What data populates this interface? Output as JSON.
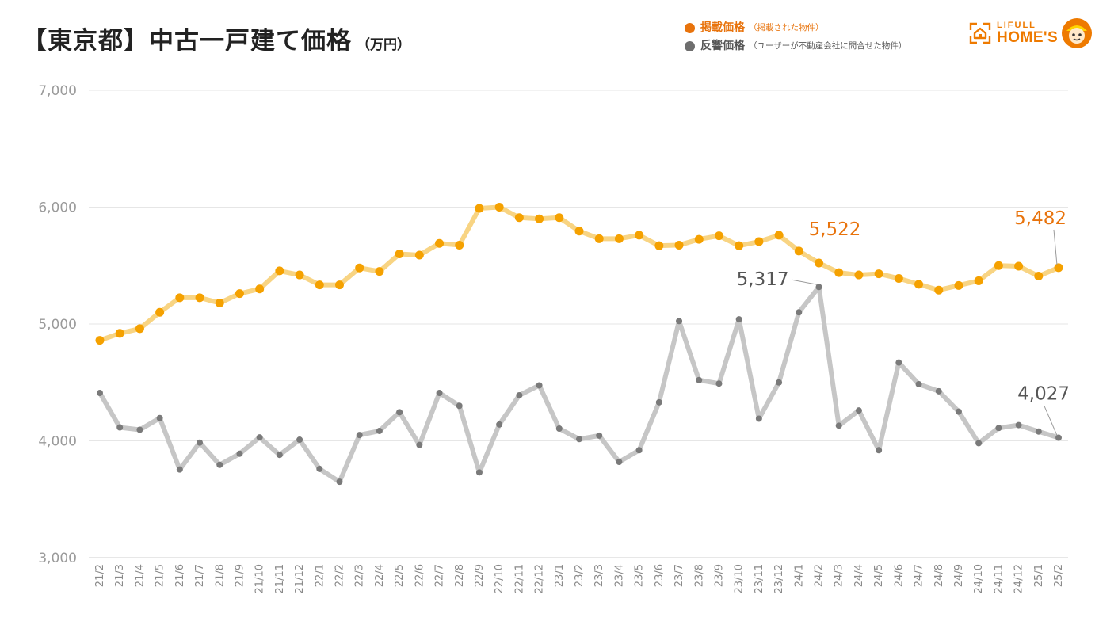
{
  "title": "【東京都】中古一戸建て価格",
  "unit": "（万円）",
  "legend": [
    {
      "name": "掲載価格",
      "note": "（掲載された物件）",
      "color": "#e8730c"
    },
    {
      "name": "反響価格",
      "note": "（ユーザーが不動産会社に問合せた物件）",
      "color": "#6e6e6e"
    }
  ],
  "logo": {
    "line1": "LIFULL",
    "line2": "HOME'S"
  },
  "chart_data": {
    "type": "line",
    "title": "【東京都】中古一戸建て価格",
    "ylabel": "（万円）",
    "ylim": [
      3000,
      7000
    ],
    "yticks": [
      "3,000",
      "4,000",
      "5,000",
      "6,000",
      "7,000"
    ],
    "ytick_values": [
      3000,
      4000,
      5000,
      6000,
      7000
    ],
    "grid": true,
    "categories": [
      "21/2",
      "21/3",
      "21/4",
      "21/5",
      "21/6",
      "21/7",
      "21/8",
      "21/9",
      "21/10",
      "21/11",
      "21/12",
      "22/1",
      "22/2",
      "22/3",
      "22/4",
      "22/5",
      "22/6",
      "22/7",
      "22/8",
      "22/9",
      "22/10",
      "22/11",
      "22/12",
      "23/1",
      "23/2",
      "23/3",
      "23/4",
      "23/5",
      "23/6",
      "23/7",
      "23/8",
      "23/9",
      "23/10",
      "23/11",
      "23/12",
      "24/1",
      "24/2",
      "24/3",
      "24/4",
      "24/5",
      "24/6",
      "24/7",
      "24/8",
      "24/9",
      "24/10",
      "24/11",
      "24/12",
      "25/1",
      "25/2"
    ],
    "series": [
      {
        "name": "掲載価格",
        "color": "#f5a100",
        "line_color": "#f8d483",
        "values": [
          4860,
          4920,
          4960,
          5100,
          5225,
          5225,
          5180,
          5260,
          5300,
          5455,
          5420,
          5335,
          5335,
          5480,
          5450,
          5600,
          5590,
          5690,
          5675,
          5990,
          6000,
          5910,
          5900,
          5910,
          5795,
          5730,
          5730,
          5760,
          5670,
          5675,
          5725,
          5755,
          5670,
          5705,
          5760,
          5625,
          5522,
          5440,
          5420,
          5430,
          5390,
          5340,
          5290,
          5330,
          5370,
          5500,
          5495,
          5410,
          5482
        ]
      },
      {
        "name": "反響価格",
        "color": "#7a7a7a",
        "line_color": "#c6c6c6",
        "values": [
          4410,
          4115,
          4095,
          4195,
          3755,
          3985,
          3795,
          3890,
          4030,
          3880,
          4010,
          3760,
          3650,
          4050,
          4085,
          4245,
          3965,
          4410,
          4300,
          3730,
          4140,
          4390,
          4475,
          4105,
          4015,
          4045,
          3820,
          3920,
          4330,
          5025,
          4520,
          4490,
          5040,
          4190,
          4500,
          5100,
          5317,
          4130,
          4260,
          3920,
          4670,
          4485,
          4425,
          4250,
          3980,
          4110,
          4135,
          4080,
          4027
        ]
      }
    ],
    "annotations": [
      {
        "series": 0,
        "index": 36,
        "label": "5,522",
        "color": "#e8730c"
      },
      {
        "series": 0,
        "index": 48,
        "label": "5,482",
        "color": "#e8730c"
      },
      {
        "series": 1,
        "index": 36,
        "label": "5,317",
        "color": "#555555"
      },
      {
        "series": 1,
        "index": 48,
        "label": "4,027",
        "color": "#555555"
      }
    ]
  }
}
